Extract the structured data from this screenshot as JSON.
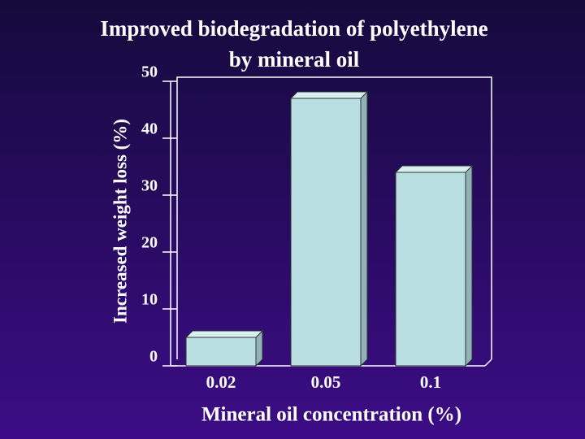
{
  "chart_data": {
    "type": "bar3d",
    "title": [
      "Improved biodegradation of polyethylene",
      "by mineral oil"
    ],
    "x_label": "Mineral oil concentration (%)",
    "y_label": "Increased weight loss (%)",
    "categories": [
      "0.02",
      "0.05",
      "0.1"
    ],
    "values": [
      5,
      47,
      34
    ],
    "color": "#b9dfe2",
    "ylim": [
      0,
      50
    ],
    "yticks": [
      0,
      10,
      20,
      30,
      40,
      50
    ]
  }
}
